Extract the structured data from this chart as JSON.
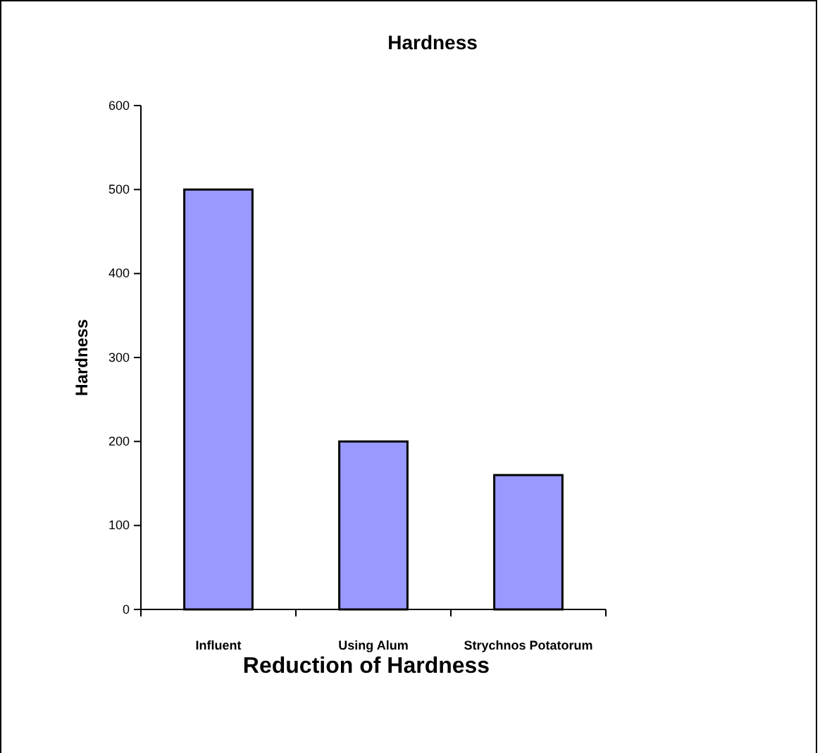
{
  "chart_data": {
    "type": "bar",
    "title": "Hardness",
    "xlabel": "Reduction of Hardness",
    "ylabel": "Hardness",
    "categories": [
      "Influent",
      "Using Alum",
      "Strychnos Potatorum"
    ],
    "values": [
      500,
      200,
      160
    ],
    "color": "#9999ff",
    "ylim": [
      0,
      600
    ],
    "yticks": [
      0,
      100,
      200,
      300,
      400,
      500,
      600
    ],
    "grid": false
  }
}
